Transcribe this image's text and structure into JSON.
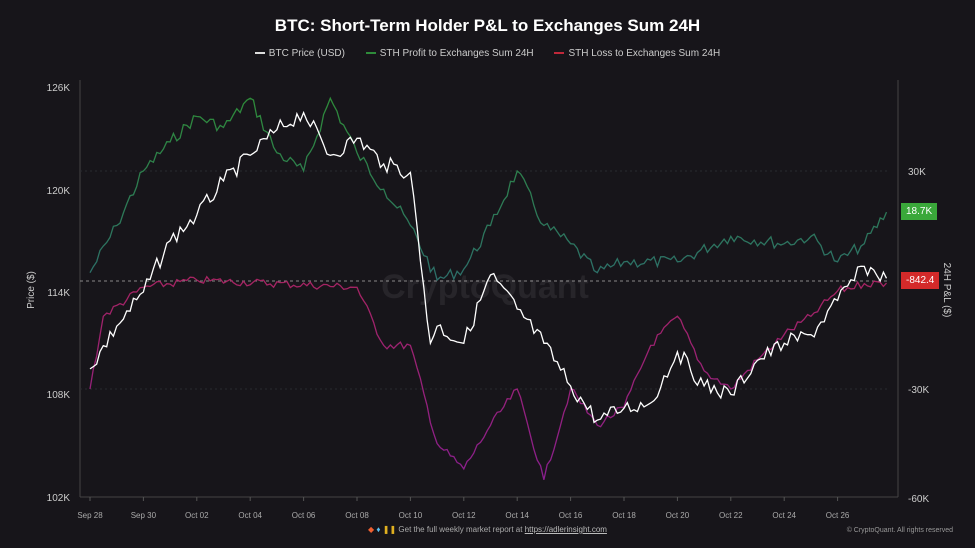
{
  "chart_data": {
    "type": "line",
    "title": "BTC: Short-Term Holder P&L to Exchanges Sum 24H",
    "ylabel_left": "Price ($)",
    "ylabel_right": "24H P&L ($)",
    "left_ticks": [
      "102K",
      "108K",
      "114K",
      "120K",
      "126K"
    ],
    "left_range": [
      102000,
      126000
    ],
    "right_ticks": [
      "30K",
      "-30K",
      "-60K"
    ],
    "right_range": [
      -60000,
      53000
    ],
    "x_ticks": [
      "Sep 28",
      "Sep 30",
      "Oct 02",
      "Oct 04",
      "Oct 06",
      "Oct 08",
      "Oct 10",
      "Oct 12",
      "Oct 14",
      "Oct 16",
      "Oct 18",
      "Oct 20",
      "Oct 22",
      "Oct 24",
      "Oct 26"
    ],
    "x_day_range": [
      "Sep 27.6",
      "Oct 27.9"
    ],
    "grid": true,
    "legend_placement": "top-center",
    "watermark": "CryptoQuant",
    "series": [
      {
        "name": "BTC Price (USD)",
        "axis": "left",
        "color": "#ffffff",
        "x": [
          "Sep 28",
          "Sep 29",
          "Sep 30",
          "Oct 01",
          "Oct 02",
          "Oct 03",
          "Oct 04",
          "Oct 05",
          "Oct 06",
          "Oct 07",
          "Oct 08",
          "Oct 09",
          "Oct 10",
          "Oct 10 18h",
          "Oct 11",
          "Oct 12",
          "Oct 13",
          "Oct 14",
          "Oct 15",
          "Oct 16",
          "Oct 17",
          "Oct 18",
          "Oct 19",
          "Oct 20",
          "Oct 21",
          "Oct 22",
          "Oct 23",
          "Oct 24",
          "Oct 25",
          "Oct 26",
          "Oct 27",
          "Oct 27 20h"
        ],
        "values": [
          109500,
          112000,
          114000,
          117000,
          118500,
          120500,
          122000,
          123500,
          124500,
          122000,
          123000,
          121500,
          121000,
          111000,
          112000,
          111000,
          115000,
          113000,
          111000,
          108500,
          106500,
          107200,
          107500,
          110500,
          108500,
          108000,
          110000,
          111000,
          111500,
          113500,
          115500,
          114800
        ]
      },
      {
        "name": "STH Profit to Exchanges Sum 24H",
        "axis": "right",
        "color_high": "#2e8b3a",
        "color_low": "#2b4f9e",
        "x": [
          "Sep 28",
          "Sep 29",
          "Sep 30",
          "Oct 01",
          "Oct 02",
          "Oct 03",
          "Oct 04",
          "Oct 05",
          "Oct 06",
          "Oct 07",
          "Oct 08",
          "Oct 09",
          "Oct 10",
          "Oct 11",
          "Oct 12",
          "Oct 13",
          "Oct 14",
          "Oct 15",
          "Oct 16",
          "Oct 17",
          "Oct 18",
          "Oct 20",
          "Oct 22",
          "Oct 24",
          "Oct 25",
          "Oct 26",
          "Oct 27",
          "Oct 27 20h"
        ],
        "values": [
          2000,
          15000,
          30000,
          38000,
          45000,
          42000,
          50000,
          35000,
          30000,
          50000,
          35000,
          25000,
          15000,
          0,
          3000,
          15000,
          30000,
          15000,
          10000,
          2000,
          5000,
          5000,
          12000,
          10000,
          12000,
          5000,
          10000,
          18700
        ]
      },
      {
        "name": "STH Loss to Exchanges Sum 24H",
        "axis": "right",
        "color_high": "#c0283a",
        "color_low": "#8a1f8f",
        "x": [
          "Sep 28",
          "Sep 28 12h",
          "Sep 30",
          "Oct 02",
          "Oct 08",
          "Oct 09",
          "Oct 10",
          "Oct 11",
          "Oct 12",
          "Oct 13",
          "Oct 14",
          "Oct 15",
          "Oct 16",
          "Oct 17",
          "Oct 18",
          "Oct 19",
          "Oct 20",
          "Oct 21",
          "Oct 22",
          "Oct 23",
          "Oct 24",
          "Oct 25",
          "Oct 26",
          "Oct 27",
          "Oct 27 20h"
        ],
        "values": [
          -30000,
          -10000,
          -2000,
          0,
          -2000,
          -18000,
          -18000,
          -45000,
          -52000,
          -40000,
          -30000,
          -55000,
          -30000,
          -40000,
          -35000,
          -18000,
          -10000,
          -25000,
          -30000,
          -22000,
          -15000,
          -10000,
          -3000,
          -1000,
          -842.4
        ]
      }
    ],
    "current_badges": {
      "profit": "18.7K",
      "profit_color": "#3aa83a",
      "loss": "-842.4",
      "loss_color": "#d42a2a"
    }
  },
  "footer": {
    "text": "Get the full weekly market report at",
    "link": "https://adlerinsight.com",
    "copyright": "© CryptoQuant. All rights reserved"
  }
}
